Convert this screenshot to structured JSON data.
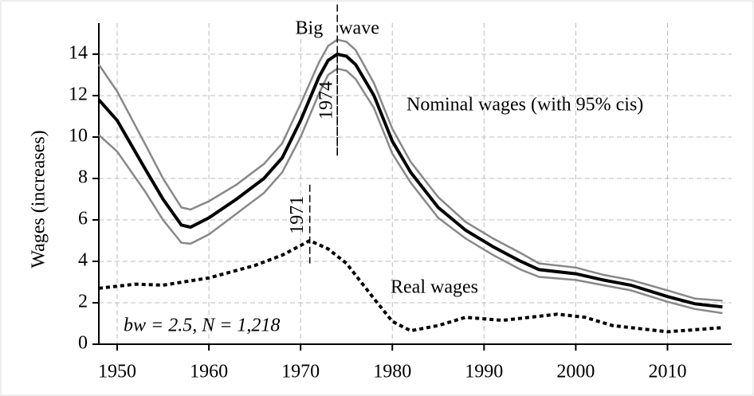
{
  "chart_data": {
    "type": "line",
    "y_label": "Wages (increases)",
    "xlim": [
      1948,
      2017
    ],
    "ylim": [
      0,
      15.5
    ],
    "xticks": [
      1950,
      1960,
      1970,
      1980,
      1990,
      2000,
      2010
    ],
    "yticks": [
      0,
      2,
      4,
      6,
      8,
      10,
      12,
      14
    ],
    "grid": true,
    "series": [
      {
        "name": "Nominal wages (with 95% cis)",
        "color": "#000000",
        "style": "solid",
        "width": 4,
        "x": [
          1948,
          1950,
          1953,
          1955,
          1957,
          1958,
          1960,
          1963,
          1966,
          1968,
          1970,
          1972,
          1973,
          1974,
          1975,
          1976,
          1978,
          1980,
          1982,
          1985,
          1988,
          1991,
          1994,
          1996,
          2000,
          2003,
          2006,
          2010,
          2013,
          2016
        ],
        "values": [
          11.8,
          10.8,
          8.5,
          7.0,
          5.75,
          5.65,
          6.1,
          7.0,
          8.0,
          9.0,
          10.8,
          12.9,
          13.7,
          14.0,
          13.9,
          13.5,
          12.0,
          9.8,
          8.3,
          6.6,
          5.5,
          4.7,
          4.0,
          3.6,
          3.4,
          3.1,
          2.85,
          2.3,
          1.95,
          1.8
        ]
      },
      {
        "color": "#888888",
        "style": "solid",
        "width": 2.5,
        "x": [
          1948,
          1950,
          1953,
          1955,
          1957,
          1958,
          1960,
          1963,
          1966,
          1968,
          1970,
          1972,
          1973,
          1974,
          1975,
          1976,
          1978,
          1980,
          1982,
          1985,
          1988,
          1991,
          1994,
          1996,
          2000,
          2003,
          2006,
          2010,
          2013,
          2016
        ],
        "values": [
          13.5,
          12.2,
          9.7,
          8.0,
          6.6,
          6.5,
          6.9,
          7.7,
          8.7,
          9.7,
          11.6,
          13.6,
          14.4,
          14.7,
          14.6,
          14.2,
          12.6,
          10.4,
          8.8,
          7.1,
          5.9,
          5.1,
          4.4,
          3.9,
          3.7,
          3.35,
          3.1,
          2.6,
          2.2,
          2.1
        ]
      },
      {
        "color": "#888888",
        "style": "solid",
        "width": 2.5,
        "x": [
          1948,
          1950,
          1953,
          1955,
          1957,
          1958,
          1960,
          1963,
          1966,
          1968,
          1970,
          1972,
          1973,
          1974,
          1975,
          1976,
          1978,
          1980,
          1982,
          1985,
          1988,
          1991,
          1994,
          1996,
          2000,
          2003,
          2006,
          2010,
          2013,
          2016
        ],
        "values": [
          10.1,
          9.3,
          7.4,
          6.0,
          4.9,
          4.85,
          5.3,
          6.3,
          7.3,
          8.3,
          10.0,
          12.1,
          13.0,
          13.3,
          13.2,
          12.8,
          11.4,
          9.2,
          7.8,
          6.1,
          5.1,
          4.3,
          3.6,
          3.25,
          3.1,
          2.85,
          2.6,
          2.05,
          1.7,
          1.5
        ]
      },
      {
        "name": "Real wages",
        "color": "#000000",
        "style": "dotted",
        "width": 4,
        "x": [
          1948,
          1952,
          1955,
          1960,
          1965,
          1968,
          1971,
          1973,
          1975,
          1978,
          1980,
          1982,
          1985,
          1988,
          1992,
          1995,
          1998,
          2001,
          2004,
          2010,
          2016
        ],
        "values": [
          2.7,
          2.9,
          2.85,
          3.2,
          3.8,
          4.3,
          5.0,
          4.6,
          3.9,
          2.2,
          1.1,
          0.65,
          0.9,
          1.3,
          1.15,
          1.3,
          1.45,
          1.3,
          0.9,
          0.6,
          0.8
        ]
      }
    ],
    "annotations": [
      {
        "text": "Big wave",
        "x": 1974,
        "y_from": 16.4,
        "y_to": 9.1
      },
      {
        "text": "1974",
        "x": 1974,
        "y_from": 14.0,
        "y_to": 9.1
      },
      {
        "text": "1971",
        "x": 1971,
        "y_from": 7.7,
        "y_to": 3.9
      }
    ],
    "note": "bw = 2.5, N = 1,218"
  }
}
